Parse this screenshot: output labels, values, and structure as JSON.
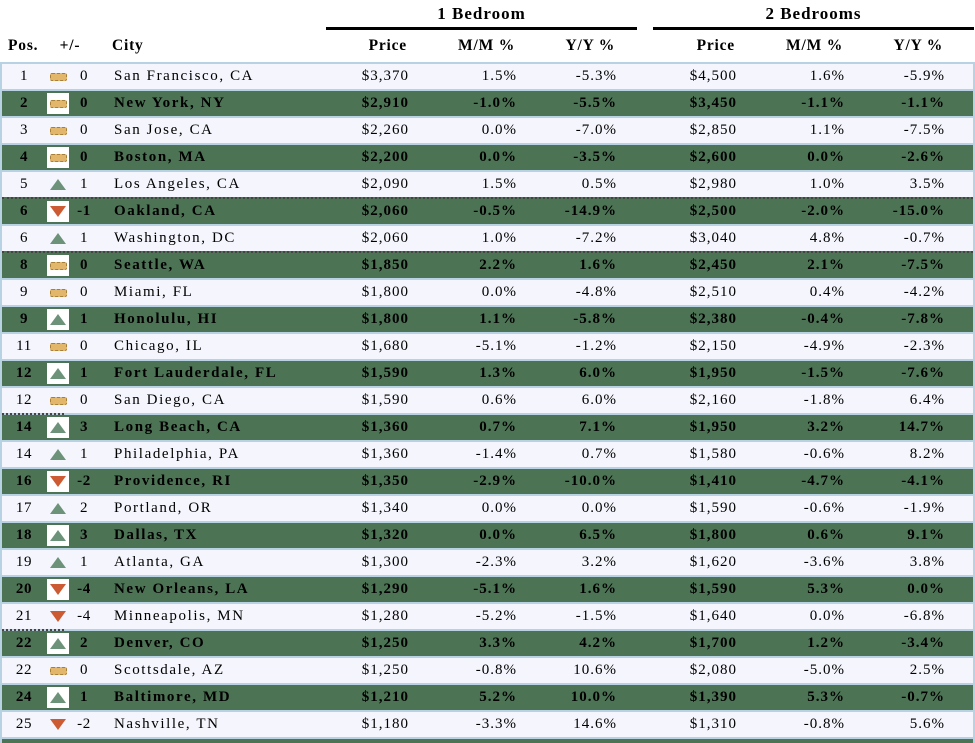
{
  "colors": {
    "row_green": "#4D7355",
    "row_light": "#F5F6FD",
    "grid_blue": "#B7D2E3",
    "flat_fill": "#E2B76C",
    "flat_border": "#A5803B",
    "up_fill": "#6C9379",
    "down_fill": "#CC5B33"
  },
  "chart_data": {
    "type": "table",
    "base_columns": [
      "Pos.",
      "+/-",
      "City"
    ],
    "column_groups": [
      {
        "label": "1 Bedroom",
        "columns": [
          "Price",
          "M/M %",
          "Y/Y %"
        ]
      },
      {
        "label": "2 Bedrooms",
        "columns": [
          "Price",
          "M/M %",
          "Y/Y %"
        ]
      }
    ],
    "rows": [
      {
        "pos": "1",
        "direction": "flat",
        "change": "0",
        "city": "San Francisco, CA",
        "br1": {
          "price": "$3,370",
          "mm": "1.5%",
          "yy": "-5.3%"
        },
        "br2": {
          "price": "$4,500",
          "mm": "1.6%",
          "yy": "-5.9%"
        }
      },
      {
        "pos": "2",
        "direction": "flat",
        "change": "0",
        "city": "New York, NY",
        "br1": {
          "price": "$2,910",
          "mm": "-1.0%",
          "yy": "-5.5%"
        },
        "br2": {
          "price": "$3,450",
          "mm": "-1.1%",
          "yy": "-1.1%"
        }
      },
      {
        "pos": "3",
        "direction": "flat",
        "change": "0",
        "city": "San Jose, CA",
        "br1": {
          "price": "$2,260",
          "mm": "0.0%",
          "yy": "-7.0%"
        },
        "br2": {
          "price": "$2,850",
          "mm": "1.1%",
          "yy": "-7.5%"
        }
      },
      {
        "pos": "4",
        "direction": "flat",
        "change": "0",
        "city": "Boston, MA",
        "br1": {
          "price": "$2,200",
          "mm": "0.0%",
          "yy": "-3.5%"
        },
        "br2": {
          "price": "$2,600",
          "mm": "0.0%",
          "yy": "-2.6%"
        }
      },
      {
        "pos": "5",
        "direction": "up",
        "change": "1",
        "city": "Los Angeles, CA",
        "br1": {
          "price": "$2,090",
          "mm": "1.5%",
          "yy": "0.5%"
        },
        "br2": {
          "price": "$2,980",
          "mm": "1.0%",
          "yy": "3.5%"
        }
      },
      {
        "pos": "6",
        "direction": "down",
        "change": "-1",
        "city": "Oakland, CA",
        "divider": "dotted_full",
        "br1": {
          "price": "$2,060",
          "mm": "-0.5%",
          "yy": "-14.9%"
        },
        "br2": {
          "price": "$2,500",
          "mm": "-2.0%",
          "yy": "-15.0%"
        }
      },
      {
        "pos": "6",
        "direction": "up",
        "change": "1",
        "city": "Washington, DC",
        "br1": {
          "price": "$2,060",
          "mm": "1.0%",
          "yy": "-7.2%"
        },
        "br2": {
          "price": "$3,040",
          "mm": "4.8%",
          "yy": "-0.7%"
        }
      },
      {
        "pos": "8",
        "direction": "flat",
        "change": "0",
        "city": "Seattle, WA",
        "divider": "dotted_full",
        "br1": {
          "price": "$1,850",
          "mm": "2.2%",
          "yy": "1.6%"
        },
        "br2": {
          "price": "$2,450",
          "mm": "2.1%",
          "yy": "-7.5%"
        }
      },
      {
        "pos": "9",
        "direction": "flat",
        "change": "0",
        "city": "Miami, FL",
        "br1": {
          "price": "$1,800",
          "mm": "0.0%",
          "yy": "-4.8%"
        },
        "br2": {
          "price": "$2,510",
          "mm": "0.4%",
          "yy": "-4.2%"
        }
      },
      {
        "pos": "9",
        "direction": "up",
        "change": "1",
        "city": "Honolulu, HI",
        "br1": {
          "price": "$1,800",
          "mm": "1.1%",
          "yy": "-5.8%"
        },
        "br2": {
          "price": "$2,380",
          "mm": "-0.4%",
          "yy": "-7.8%"
        }
      },
      {
        "pos": "11",
        "direction": "flat",
        "change": "0",
        "city": "Chicago, IL",
        "br1": {
          "price": "$1,680",
          "mm": "-5.1%",
          "yy": "-1.2%"
        },
        "br2": {
          "price": "$2,150",
          "mm": "-4.9%",
          "yy": "-2.3%"
        }
      },
      {
        "pos": "12",
        "direction": "up",
        "change": "1",
        "city": "Fort Lauderdale, FL",
        "br1": {
          "price": "$1,590",
          "mm": "1.3%",
          "yy": "6.0%"
        },
        "br2": {
          "price": "$1,950",
          "mm": "-1.5%",
          "yy": "-7.6%"
        }
      },
      {
        "pos": "12",
        "direction": "flat",
        "change": "0",
        "city": "San Diego, CA",
        "br1": {
          "price": "$1,590",
          "mm": "0.6%",
          "yy": "6.0%"
        },
        "br2": {
          "price": "$2,160",
          "mm": "-1.8%",
          "yy": "6.4%"
        }
      },
      {
        "pos": "14",
        "direction": "up",
        "change": "3",
        "city": "Long Beach, CA",
        "divider": "dotted_left",
        "br1": {
          "price": "$1,360",
          "mm": "0.7%",
          "yy": "7.1%"
        },
        "br2": {
          "price": "$1,950",
          "mm": "3.2%",
          "yy": "14.7%"
        }
      },
      {
        "pos": "14",
        "direction": "up",
        "change": "1",
        "city": "Philadelphia, PA",
        "br1": {
          "price": "$1,360",
          "mm": "-1.4%",
          "yy": "0.7%"
        },
        "br2": {
          "price": "$1,580",
          "mm": "-0.6%",
          "yy": "8.2%"
        }
      },
      {
        "pos": "16",
        "direction": "down",
        "change": "-2",
        "city": "Providence, RI",
        "br1": {
          "price": "$1,350",
          "mm": "-2.9%",
          "yy": "-10.0%"
        },
        "br2": {
          "price": "$1,410",
          "mm": "-4.7%",
          "yy": "-4.1%"
        }
      },
      {
        "pos": "17",
        "direction": "up",
        "change": "2",
        "city": "Portland, OR",
        "br1": {
          "price": "$1,340",
          "mm": "0.0%",
          "yy": "0.0%"
        },
        "br2": {
          "price": "$1,590",
          "mm": "-0.6%",
          "yy": "-1.9%"
        }
      },
      {
        "pos": "18",
        "direction": "up",
        "change": "3",
        "city": "Dallas, TX",
        "br1": {
          "price": "$1,320",
          "mm": "0.0%",
          "yy": "6.5%"
        },
        "br2": {
          "price": "$1,800",
          "mm": "0.6%",
          "yy": "9.1%"
        }
      },
      {
        "pos": "19",
        "direction": "up",
        "change": "1",
        "city": "Atlanta, GA",
        "br1": {
          "price": "$1,300",
          "mm": "-2.3%",
          "yy": "3.2%"
        },
        "br2": {
          "price": "$1,620",
          "mm": "-3.6%",
          "yy": "3.8%"
        }
      },
      {
        "pos": "20",
        "direction": "down",
        "change": "-4",
        "city": "New Orleans, LA",
        "br1": {
          "price": "$1,290",
          "mm": "-5.1%",
          "yy": "1.6%"
        },
        "br2": {
          "price": "$1,590",
          "mm": "5.3%",
          "yy": "0.0%"
        }
      },
      {
        "pos": "21",
        "direction": "down",
        "change": "-4",
        "city": "Minneapolis, MN",
        "br1": {
          "price": "$1,280",
          "mm": "-5.2%",
          "yy": "-1.5%"
        },
        "br2": {
          "price": "$1,640",
          "mm": "0.0%",
          "yy": "-6.8%"
        }
      },
      {
        "pos": "22",
        "direction": "up",
        "change": "2",
        "city": "Denver, CO",
        "divider": "dotted_left",
        "br1": {
          "price": "$1,250",
          "mm": "3.3%",
          "yy": "4.2%"
        },
        "br2": {
          "price": "$1,700",
          "mm": "1.2%",
          "yy": "-3.4%"
        }
      },
      {
        "pos": "22",
        "direction": "flat",
        "change": "0",
        "city": "Scottsdale, AZ",
        "br1": {
          "price": "$1,250",
          "mm": "-0.8%",
          "yy": "10.6%"
        },
        "br2": {
          "price": "$2,080",
          "mm": "-5.0%",
          "yy": "2.5%"
        }
      },
      {
        "pos": "24",
        "direction": "up",
        "change": "1",
        "city": "Baltimore, MD",
        "br1": {
          "price": "$1,210",
          "mm": "5.2%",
          "yy": "10.0%"
        },
        "br2": {
          "price": "$1,390",
          "mm": "5.3%",
          "yy": "-0.7%"
        }
      },
      {
        "pos": "25",
        "direction": "down",
        "change": "-2",
        "city": "Nashville, TN",
        "br1": {
          "price": "$1,180",
          "mm": "-3.3%",
          "yy": "14.6%"
        },
        "br2": {
          "price": "$1,310",
          "mm": "-0.8%",
          "yy": "5.6%"
        }
      }
    ]
  }
}
